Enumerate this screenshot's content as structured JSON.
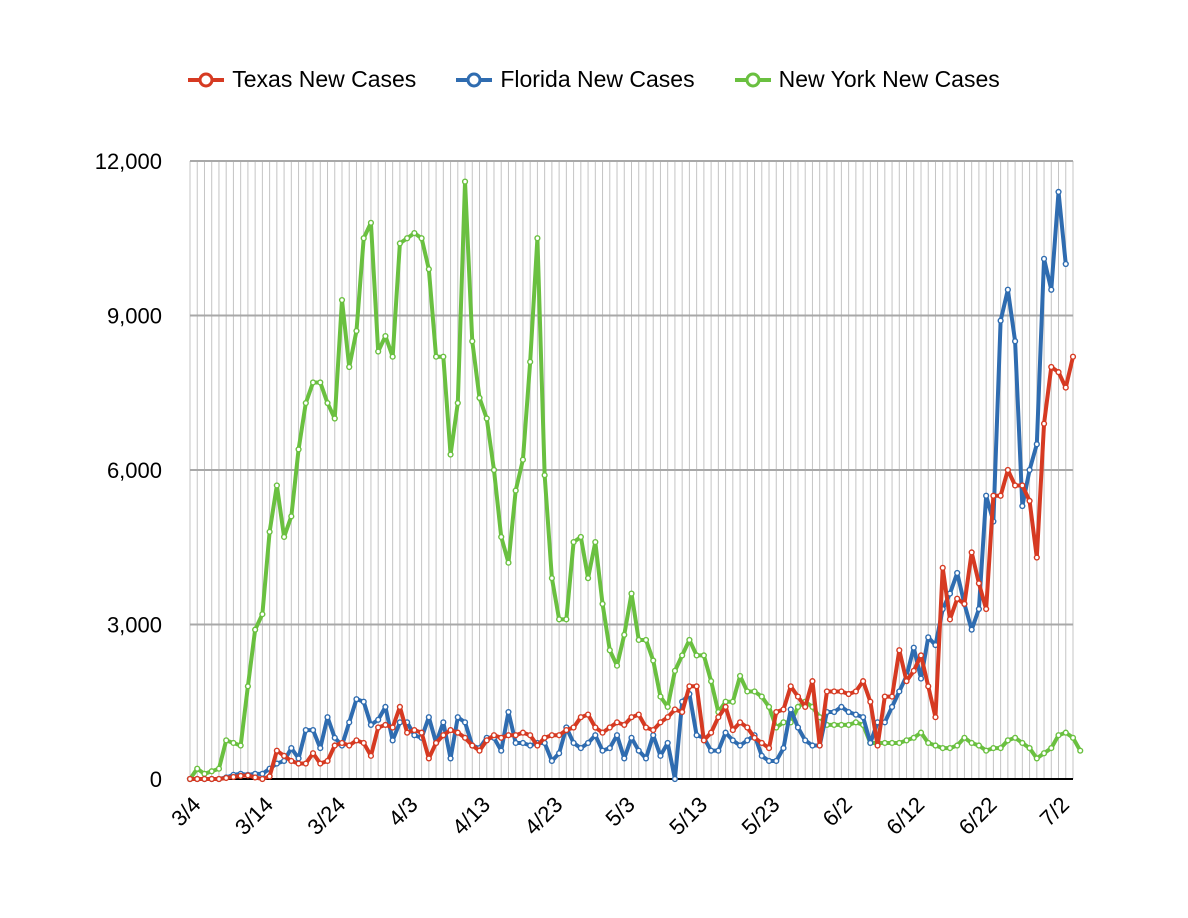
{
  "chart_data": {
    "type": "line",
    "title": "",
    "xlabel": "",
    "ylabel": "",
    "ylim": [
      0,
      12000
    ],
    "yticks": [
      0,
      3000,
      6000,
      9000,
      12000
    ],
    "ytick_labels": [
      "0",
      "3,000",
      "6,000",
      "9,000",
      "12,000"
    ],
    "xtick_labels": [
      "3/4",
      "3/14",
      "3/24",
      "4/3",
      "4/13",
      "4/23",
      "5/3",
      "5/13",
      "5/23",
      "6/2",
      "6/12",
      "6/22",
      "7/2"
    ],
    "xtick_step": 10,
    "x_start": "3/4",
    "x_end": "7/3",
    "grid": true,
    "legend_position": "top",
    "series": [
      {
        "name": "Texas New Cases",
        "color": "#d63a22",
        "values": [
          0,
          0,
          0,
          0,
          0,
          20,
          40,
          60,
          70,
          30,
          0,
          50,
          550,
          450,
          350,
          300,
          300,
          500,
          300,
          350,
          650,
          700,
          650,
          750,
          700,
          450,
          1000,
          1050,
          1000,
          1400,
          900,
          950,
          900,
          400,
          700,
          850,
          950,
          900,
          800,
          650,
          550,
          750,
          850,
          800,
          850,
          850,
          900,
          850,
          650,
          800,
          850,
          850,
          950,
          1000,
          1200,
          1250,
          1000,
          900,
          1000,
          1100,
          1050,
          1200,
          1250,
          1000,
          950,
          1100,
          1200,
          1350,
          1300,
          1800,
          1800,
          750,
          900,
          1200,
          1400,
          950,
          1100,
          1000,
          800,
          700,
          600,
          1300,
          1350,
          1800,
          1600,
          1400,
          1900,
          650,
          1700,
          1700,
          1700,
          1650,
          1700,
          1900,
          1500,
          650,
          1600,
          1600,
          2500,
          1900,
          2100,
          2400,
          1800,
          1200,
          4100,
          3100,
          3500,
          3400,
          4400,
          3800,
          3300,
          5500,
          5500,
          6000,
          5700,
          5700,
          5400,
          4300,
          6900,
          8000,
          7900,
          7600,
          8200
        ]
      },
      {
        "name": "Florida New Cases",
        "color": "#2f6cb0",
        "values": [
          0,
          0,
          0,
          0,
          0,
          30,
          80,
          100,
          80,
          100,
          100,
          200,
          300,
          350,
          600,
          400,
          950,
          950,
          600,
          1200,
          800,
          650,
          1100,
          1550,
          1500,
          1050,
          1150,
          1400,
          750,
          1100,
          1100,
          850,
          800,
          1200,
          700,
          1100,
          400,
          1200,
          1100,
          650,
          600,
          800,
          800,
          550,
          1300,
          700,
          700,
          650,
          700,
          700,
          350,
          500,
          1000,
          700,
          600,
          700,
          850,
          550,
          600,
          850,
          400,
          800,
          550,
          400,
          850,
          450,
          700,
          0,
          1500,
          1650,
          850,
          800,
          550,
          550,
          900,
          750,
          650,
          750,
          850,
          450,
          350,
          350,
          600,
          1350,
          1000,
          750,
          650,
          650,
          1300,
          1300,
          1400,
          1300,
          1250,
          1200,
          700,
          1100,
          1100,
          1400,
          1700,
          2000,
          2550,
          1950,
          2750,
          2600,
          3300,
          3600,
          4000,
          3400,
          2900,
          3300,
          5500,
          5000,
          8900,
          9500,
          8500,
          5300,
          6000,
          6500,
          10100,
          9500,
          11400,
          10000
        ]
      },
      {
        "name": "New York New Cases",
        "color": "#6ac040",
        "values": [
          0,
          200,
          100,
          150,
          200,
          750,
          700,
          650,
          1800,
          2900,
          3200,
          4800,
          5700,
          4700,
          5100,
          6400,
          7300,
          7700,
          7700,
          7300,
          7000,
          9300,
          8000,
          8700,
          10500,
          10800,
          8300,
          8600,
          8200,
          10400,
          10500,
          10600,
          10500,
          9900,
          8200,
          8200,
          6300,
          7300,
          11600,
          8500,
          7400,
          7000,
          6000,
          4700,
          4200,
          5600,
          6200,
          8100,
          10500,
          5900,
          3900,
          3100,
          3100,
          4600,
          4700,
          3900,
          4600,
          3400,
          2500,
          2200,
          2800,
          3600,
          2700,
          2700,
          2300,
          1600,
          1400,
          2100,
          2400,
          2700,
          2400,
          2400,
          1900,
          1300,
          1500,
          1500,
          2000,
          1700,
          1700,
          1600,
          1400,
          1000,
          1100,
          1100,
          1400,
          1500,
          1400,
          1200,
          1050,
          1050,
          1050,
          1050,
          1100,
          1050,
          700,
          700,
          700,
          700,
          700,
          750,
          800,
          900,
          700,
          650,
          600,
          600,
          650,
          800,
          700,
          650,
          550,
          600,
          600,
          750,
          800,
          700,
          600,
          400,
          500,
          600,
          850,
          900,
          800,
          550
        ]
      }
    ]
  }
}
